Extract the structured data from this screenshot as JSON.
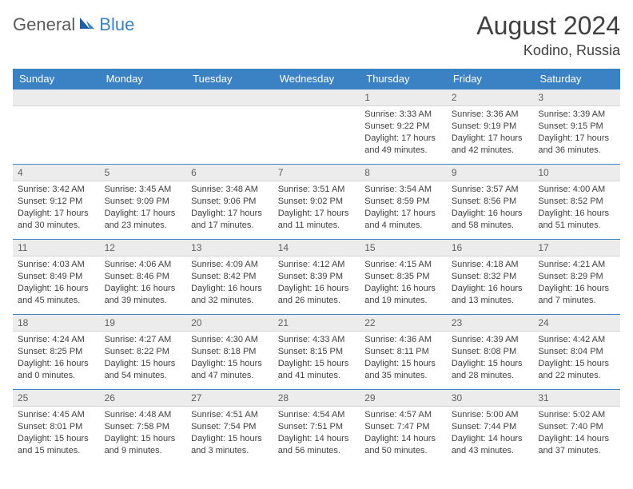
{
  "logo": {
    "part1": "General",
    "part2": "Blue"
  },
  "title": "August 2024",
  "location": "Kodino, Russia",
  "colors": {
    "header_bg": "#3b82c4",
    "daynum_bg": "#ececec",
    "border": "#3b82c4",
    "text": "#404040",
    "logo_gray": "#5a5a5a",
    "logo_blue": "#3b82c4"
  },
  "weekdays": [
    "Sunday",
    "Monday",
    "Tuesday",
    "Wednesday",
    "Thursday",
    "Friday",
    "Saturday"
  ],
  "weeks": [
    [
      null,
      null,
      null,
      null,
      {
        "n": "1",
        "sr": "3:33 AM",
        "ss": "9:22 PM",
        "dl": "17 hours and 49 minutes."
      },
      {
        "n": "2",
        "sr": "3:36 AM",
        "ss": "9:19 PM",
        "dl": "17 hours and 42 minutes."
      },
      {
        "n": "3",
        "sr": "3:39 AM",
        "ss": "9:15 PM",
        "dl": "17 hours and 36 minutes."
      }
    ],
    [
      {
        "n": "4",
        "sr": "3:42 AM",
        "ss": "9:12 PM",
        "dl": "17 hours and 30 minutes."
      },
      {
        "n": "5",
        "sr": "3:45 AM",
        "ss": "9:09 PM",
        "dl": "17 hours and 23 minutes."
      },
      {
        "n": "6",
        "sr": "3:48 AM",
        "ss": "9:06 PM",
        "dl": "17 hours and 17 minutes."
      },
      {
        "n": "7",
        "sr": "3:51 AM",
        "ss": "9:02 PM",
        "dl": "17 hours and 11 minutes."
      },
      {
        "n": "8",
        "sr": "3:54 AM",
        "ss": "8:59 PM",
        "dl": "17 hours and 4 minutes."
      },
      {
        "n": "9",
        "sr": "3:57 AM",
        "ss": "8:56 PM",
        "dl": "16 hours and 58 minutes."
      },
      {
        "n": "10",
        "sr": "4:00 AM",
        "ss": "8:52 PM",
        "dl": "16 hours and 51 minutes."
      }
    ],
    [
      {
        "n": "11",
        "sr": "4:03 AM",
        "ss": "8:49 PM",
        "dl": "16 hours and 45 minutes."
      },
      {
        "n": "12",
        "sr": "4:06 AM",
        "ss": "8:46 PM",
        "dl": "16 hours and 39 minutes."
      },
      {
        "n": "13",
        "sr": "4:09 AM",
        "ss": "8:42 PM",
        "dl": "16 hours and 32 minutes."
      },
      {
        "n": "14",
        "sr": "4:12 AM",
        "ss": "8:39 PM",
        "dl": "16 hours and 26 minutes."
      },
      {
        "n": "15",
        "sr": "4:15 AM",
        "ss": "8:35 PM",
        "dl": "16 hours and 19 minutes."
      },
      {
        "n": "16",
        "sr": "4:18 AM",
        "ss": "8:32 PM",
        "dl": "16 hours and 13 minutes."
      },
      {
        "n": "17",
        "sr": "4:21 AM",
        "ss": "8:29 PM",
        "dl": "16 hours and 7 minutes."
      }
    ],
    [
      {
        "n": "18",
        "sr": "4:24 AM",
        "ss": "8:25 PM",
        "dl": "16 hours and 0 minutes."
      },
      {
        "n": "19",
        "sr": "4:27 AM",
        "ss": "8:22 PM",
        "dl": "15 hours and 54 minutes."
      },
      {
        "n": "20",
        "sr": "4:30 AM",
        "ss": "8:18 PM",
        "dl": "15 hours and 47 minutes."
      },
      {
        "n": "21",
        "sr": "4:33 AM",
        "ss": "8:15 PM",
        "dl": "15 hours and 41 minutes."
      },
      {
        "n": "22",
        "sr": "4:36 AM",
        "ss": "8:11 PM",
        "dl": "15 hours and 35 minutes."
      },
      {
        "n": "23",
        "sr": "4:39 AM",
        "ss": "8:08 PM",
        "dl": "15 hours and 28 minutes."
      },
      {
        "n": "24",
        "sr": "4:42 AM",
        "ss": "8:04 PM",
        "dl": "15 hours and 22 minutes."
      }
    ],
    [
      {
        "n": "25",
        "sr": "4:45 AM",
        "ss": "8:01 PM",
        "dl": "15 hours and 15 minutes."
      },
      {
        "n": "26",
        "sr": "4:48 AM",
        "ss": "7:58 PM",
        "dl": "15 hours and 9 minutes."
      },
      {
        "n": "27",
        "sr": "4:51 AM",
        "ss": "7:54 PM",
        "dl": "15 hours and 3 minutes."
      },
      {
        "n": "28",
        "sr": "4:54 AM",
        "ss": "7:51 PM",
        "dl": "14 hours and 56 minutes."
      },
      {
        "n": "29",
        "sr": "4:57 AM",
        "ss": "7:47 PM",
        "dl": "14 hours and 50 minutes."
      },
      {
        "n": "30",
        "sr": "5:00 AM",
        "ss": "7:44 PM",
        "dl": "14 hours and 43 minutes."
      },
      {
        "n": "31",
        "sr": "5:02 AM",
        "ss": "7:40 PM",
        "dl": "14 hours and 37 minutes."
      }
    ]
  ],
  "labels": {
    "sunrise": "Sunrise:",
    "sunset": "Sunset:",
    "daylight": "Daylight:"
  }
}
